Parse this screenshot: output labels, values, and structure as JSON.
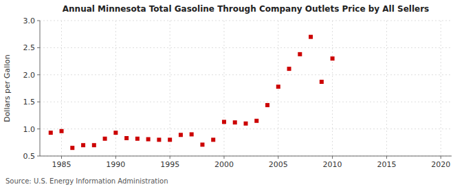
{
  "chart_data": {
    "type": "scatter",
    "title": "Annual Minnesota Total Gasoline Through Company Outlets Price by All Sellers",
    "ylabel": "Dollars per Gallon",
    "annotation": "Source: U.S. Energy Information Administration",
    "x": [
      1984,
      1985,
      1986,
      1987,
      1988,
      1989,
      1990,
      1991,
      1992,
      1993,
      1994,
      1995,
      1996,
      1997,
      1998,
      1999,
      2000,
      2001,
      2002,
      2003,
      2004,
      2005,
      2006,
      2007,
      2008,
      2009,
      2010
    ],
    "values": [
      0.93,
      0.96,
      0.65,
      0.7,
      0.7,
      0.82,
      0.93,
      0.83,
      0.82,
      0.81,
      0.8,
      0.8,
      0.89,
      0.9,
      0.71,
      0.8,
      1.13,
      1.12,
      1.1,
      1.15,
      1.44,
      1.78,
      2.11,
      2.38,
      2.7,
      1.87,
      2.3
    ],
    "color": "#cc0000",
    "marker": "square",
    "xlim": [
      1983,
      2021
    ],
    "ylim": [
      0.5,
      3.0
    ],
    "xticks": [
      1985,
      1990,
      1995,
      2000,
      2005,
      2010,
      2015,
      2020
    ],
    "yticks": [
      0.5,
      {
        "value": 1.0,
        "label": "1.0"
      },
      1.5,
      {
        "value": 2.0,
        "label": "2.0"
      },
      2.5,
      {
        "value": 3.0,
        "label": "3.0"
      }
    ],
    "grid": true
  }
}
